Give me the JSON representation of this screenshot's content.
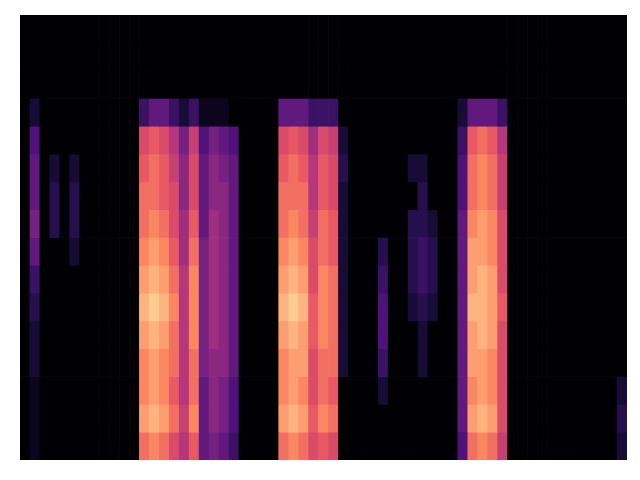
{
  "chart_data": {
    "type": "heatmap",
    "color": "magma",
    "zlim": [
      0,
      10
    ],
    "grid": false,
    "tick_labels": false,
    "cells": [
      [
        0,
        0,
        0,
        0,
        0,
        0,
        0,
        0,
        0,
        0,
        0,
        0,
        0,
        0,
        0,
        0,
        0,
        0,
        0,
        0,
        0,
        0,
        0,
        0,
        0,
        0,
        0,
        0,
        0,
        0,
        0,
        0,
        0,
        0,
        0,
        0,
        0,
        0,
        0,
        0,
        0,
        0,
        0,
        0,
        0,
        0,
        0,
        0,
        0,
        0,
        0,
        0,
        0,
        0,
        0,
        0,
        0,
        0,
        0,
        0,
        0
      ],
      [
        0,
        0,
        0,
        0,
        0,
        0,
        0,
        0,
        0,
        0,
        0,
        0,
        0,
        0,
        0,
        0,
        0,
        0,
        0,
        0,
        0,
        0,
        0,
        0,
        0,
        0,
        0,
        0,
        0,
        0,
        0,
        0,
        0,
        0,
        0,
        0,
        0,
        0,
        0,
        0,
        0,
        0,
        0,
        0,
        0,
        0,
        0,
        0,
        0,
        0,
        0,
        0,
        0,
        0,
        0,
        0,
        0,
        0,
        0,
        0,
        0
      ],
      [
        0,
        0,
        0,
        0,
        0,
        0,
        0,
        0,
        0,
        0,
        0,
        0,
        0,
        0,
        0,
        0,
        0,
        0,
        0,
        0,
        0,
        0,
        0,
        0,
        0,
        0,
        0,
        0,
        0,
        0,
        0,
        0,
        0,
        0,
        0,
        0,
        0,
        0,
        0,
        0,
        0,
        0,
        0,
        0,
        0,
        0,
        0,
        0,
        0,
        0,
        0,
        0,
        0,
        0,
        0,
        0,
        0,
        0,
        0,
        0,
        0
      ],
      [
        0,
        1,
        0,
        0,
        0,
        0,
        0,
        0,
        0,
        0,
        0,
        0,
        2,
        3,
        3,
        2,
        1,
        2,
        0.5,
        0.5,
        0.5,
        0,
        0,
        0,
        0,
        0,
        3,
        3,
        3,
        2,
        2,
        2,
        0,
        0,
        0,
        0,
        0,
        0,
        0,
        0,
        0,
        0,
        0,
        0,
        1,
        3,
        3,
        3,
        2,
        0,
        0,
        0,
        0,
        0,
        0,
        0,
        0,
        0,
        0,
        0,
        0
      ],
      [
        0,
        2.5,
        0,
        0,
        0,
        0,
        0,
        0,
        0,
        0,
        0,
        0,
        6,
        6.5,
        6,
        5,
        3.5,
        5.5,
        2.5,
        3.5,
        3,
        2.5,
        0,
        0,
        0,
        0,
        6,
        6.5,
        6,
        4.5,
        6,
        5.5,
        1,
        0,
        0,
        0,
        0,
        0,
        0,
        0,
        0,
        0,
        0,
        0,
        2,
        6.5,
        7,
        6.5,
        5,
        0,
        0,
        0,
        0,
        0,
        0,
        0,
        0,
        0,
        0,
        0,
        0
      ],
      [
        0,
        3,
        0,
        1,
        0,
        1,
        0,
        0,
        0,
        0,
        0,
        0,
        6.5,
        7,
        6.5,
        5.5,
        4,
        6,
        3,
        4,
        3.5,
        3,
        0,
        0,
        0,
        0,
        6.5,
        7,
        6.5,
        5,
        6.5,
        6,
        1.5,
        0,
        0,
        0,
        0,
        0,
        0,
        1,
        1,
        0,
        0,
        0,
        2.5,
        7,
        7.5,
        7,
        5.5,
        0,
        0,
        0,
        0,
        0,
        0,
        0,
        0,
        0,
        0,
        0,
        0
      ],
      [
        0,
        3,
        0,
        1.5,
        0,
        1.5,
        0,
        0,
        0,
        0,
        0,
        0,
        7,
        7,
        6.5,
        6,
        4,
        6,
        3,
        4,
        4,
        3,
        0,
        0,
        0,
        0,
        7,
        7,
        7,
        5,
        6.5,
        6,
        1,
        0,
        0,
        0,
        0,
        0,
        0,
        0,
        1.5,
        0,
        0,
        0,
        2.5,
        7,
        7.5,
        7,
        5.5,
        0,
        0,
        0,
        0,
        0,
        0,
        0,
        0,
        0,
        0,
        0,
        0
      ],
      [
        0,
        3.5,
        0,
        1.5,
        0,
        1.5,
        0,
        0,
        0,
        0,
        0,
        0,
        7,
        7.5,
        7,
        6,
        4.5,
        6.5,
        3,
        4.5,
        4,
        3,
        0,
        0,
        0,
        0,
        7,
        7.5,
        7,
        5.5,
        7,
        6.5,
        1,
        0,
        0,
        0,
        0,
        0,
        0,
        1.5,
        1.5,
        1,
        0,
        0,
        3,
        7.5,
        8,
        7.5,
        6,
        0,
        0,
        0,
        0,
        0,
        0,
        0,
        0,
        0,
        0,
        0,
        0
      ],
      [
        0,
        3,
        0,
        0,
        0,
        1,
        0,
        0,
        0,
        0,
        0,
        0,
        7.5,
        8,
        7.5,
        6.5,
        4.5,
        7,
        3.5,
        4.5,
        4,
        3,
        0,
        0,
        0,
        0,
        7.5,
        8,
        7.5,
        6,
        7,
        6.5,
        1,
        0,
        0,
        0,
        1.5,
        0,
        0,
        1.5,
        2,
        1.5,
        0,
        0,
        3,
        8,
        8,
        7.5,
        6,
        0,
        0,
        0,
        0,
        0,
        0,
        0,
        0,
        0,
        0,
        0,
        0
      ],
      [
        0,
        2,
        0,
        0,
        0,
        0,
        0,
        0,
        0,
        0,
        0,
        0,
        8,
        8.5,
        8,
        7,
        5,
        7.5,
        3.5,
        4.5,
        4,
        3,
        0,
        0,
        0,
        0,
        8,
        8.5,
        8,
        6,
        7.5,
        7,
        1,
        0,
        0,
        0,
        2,
        0,
        0,
        1.5,
        2,
        1.5,
        0,
        0,
        3,
        8,
        8.5,
        8,
        6,
        0,
        0,
        0,
        0,
        0,
        0,
        0,
        0,
        0,
        0,
        0,
        0
      ],
      [
        0,
        1.5,
        0,
        0,
        0,
        0,
        0,
        0,
        0,
        0,
        0,
        0,
        8.5,
        9,
        8.5,
        7.5,
        5,
        7.5,
        3.5,
        4.5,
        4,
        3,
        0,
        0,
        0,
        0,
        8.5,
        9,
        8.5,
        6.5,
        7.5,
        7,
        1,
        0,
        0,
        0,
        2.5,
        0,
        0,
        1,
        1.5,
        1,
        0,
        0,
        3,
        8.5,
        8.5,
        8,
        6.5,
        0,
        0,
        0,
        0,
        0,
        0,
        0,
        0,
        0,
        0,
        0,
        0
      ],
      [
        0,
        1,
        0,
        0,
        0,
        0,
        0,
        0,
        0,
        0,
        0,
        0,
        8,
        8.5,
        8,
        7,
        5,
        7.5,
        3.5,
        4.5,
        4,
        3,
        0,
        0,
        0,
        0,
        8,
        8.5,
        8,
        6.5,
        7.5,
        7,
        1,
        0,
        0,
        0,
        2.5,
        0,
        0,
        0,
        1,
        0,
        0,
        0,
        3,
        8,
        8.5,
        8,
        6,
        0,
        0,
        0,
        0,
        0,
        0,
        0,
        0,
        0,
        0,
        0,
        0
      ],
      [
        0,
        1,
        0,
        0,
        0,
        0,
        0,
        0,
        0,
        0,
        0,
        0,
        7.5,
        8,
        7.5,
        7,
        5,
        7,
        3.5,
        4,
        4,
        3,
        0,
        0,
        0,
        0,
        7.5,
        8,
        8,
        6,
        7,
        7,
        1,
        0,
        0,
        0,
        2,
        0,
        0,
        0,
        1,
        0,
        0,
        0,
        3,
        8,
        8,
        7.5,
        6,
        0,
        0,
        0,
        0,
        0,
        0,
        0,
        0,
        0,
        0,
        0,
        0
      ],
      [
        0,
        0.5,
        0,
        0,
        0,
        0,
        0,
        0,
        0,
        0,
        0,
        0,
        7.5,
        8,
        7.5,
        6.5,
        5,
        7,
        3,
        4,
        3.5,
        2.5,
        0,
        0,
        0,
        0,
        7.5,
        8,
        7.5,
        6,
        7,
        6.5,
        0,
        0,
        0,
        0,
        1,
        0,
        0,
        0,
        0,
        0,
        0,
        0,
        3,
        7.5,
        8,
        7.5,
        6,
        0,
        0,
        0,
        0,
        0,
        0,
        0,
        0,
        0,
        0,
        0,
        1
      ],
      [
        0,
        0.5,
        0,
        0,
        0,
        0,
        0,
        0,
        0,
        0,
        0,
        0,
        8,
        8.5,
        8,
        7,
        5.5,
        7.5,
        3,
        4,
        3.5,
        2.5,
        0,
        0,
        0,
        0,
        8,
        8.5,
        8,
        6.5,
        7.5,
        7,
        0,
        0,
        0,
        0,
        0,
        0,
        0,
        0,
        0,
        0,
        0,
        0,
        3,
        8,
        8.5,
        8,
        6,
        0,
        0,
        0,
        0,
        0,
        0,
        0,
        0,
        0,
        0,
        0,
        1.5
      ],
      [
        0,
        0.5,
        0,
        0,
        0,
        0,
        0,
        0,
        0,
        0,
        0,
        0,
        7,
        7.5,
        7,
        6,
        5,
        6.5,
        3,
        3.5,
        3,
        2,
        0,
        0,
        0,
        0,
        7,
        7.5,
        7,
        6,
        6.5,
        6,
        0,
        0,
        0,
        0,
        0,
        0,
        0,
        0,
        0,
        0,
        0,
        0,
        2.5,
        7,
        7.5,
        7,
        5.5,
        0,
        0,
        0,
        0,
        0,
        0,
        0,
        0,
        0,
        0,
        0,
        1
      ]
    ]
  }
}
